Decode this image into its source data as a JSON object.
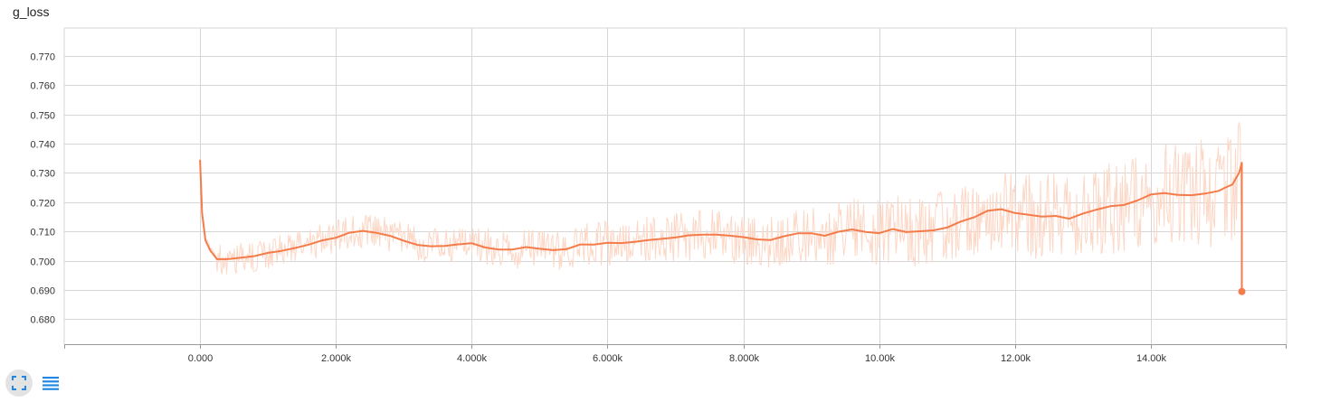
{
  "card": {
    "title": "g_loss"
  },
  "toolbar": {
    "buttons": [
      {
        "name": "expand",
        "icon": "fullscreen-icon"
      },
      {
        "name": "data",
        "icon": "list-icon"
      }
    ]
  },
  "colors": {
    "smoothed": "#f47c4a",
    "raw": "#fcd7c6",
    "grid": "#d6d6d6",
    "axis": "#999999",
    "icon": "#1f88e5"
  },
  "chart_data": {
    "type": "line",
    "title": "g_loss",
    "xlabel": "",
    "ylabel": "",
    "xlim": [
      -2000,
      16000
    ],
    "ylim": [
      0.6715,
      0.7795
    ],
    "xticks": [
      0,
      2000,
      4000,
      6000,
      8000,
      10000,
      12000,
      14000
    ],
    "xtick_labels": [
      "0.000",
      "2.000k",
      "4.000k",
      "6.000k",
      "8.000k",
      "10.00k",
      "12.00k",
      "14.00k"
    ],
    "yticks": [
      0.68,
      0.69,
      0.7,
      0.71,
      0.72,
      0.73,
      0.74,
      0.75,
      0.76,
      0.77
    ],
    "ytick_labels": [
      "0.680",
      "0.690",
      "0.700",
      "0.710",
      "0.720",
      "0.730",
      "0.740",
      "0.750",
      "0.760",
      "0.770"
    ],
    "grid": true,
    "legend": "none",
    "series": [
      {
        "kind": "smoothed",
        "x": [
          0,
          30,
          80,
          150,
          250,
          400,
          600,
          800,
          1000,
          1200,
          1400,
          1600,
          1800,
          2000,
          2200,
          2400,
          2600,
          2800,
          3000,
          3200,
          3400,
          3600,
          3800,
          4000,
          4200,
          4400,
          4600,
          4800,
          5000,
          5200,
          5400,
          5600,
          5800,
          6000,
          6200,
          6400,
          6600,
          6800,
          7000,
          7200,
          7400,
          7600,
          7800,
          8000,
          8200,
          8400,
          8600,
          8800,
          9000,
          9200,
          9400,
          9600,
          9800,
          10000,
          10200,
          10400,
          10600,
          10800,
          11000,
          11200,
          11400,
          11600,
          11800,
          12000,
          12200,
          12400,
          12600,
          12800,
          13000,
          13200,
          13400,
          13600,
          13800,
          14000,
          14200,
          14400,
          14600,
          14800,
          15000,
          15100,
          15200,
          15300,
          15340
        ],
        "y": [
          0.7345,
          0.716,
          0.707,
          0.7035,
          0.7005,
          0.7005,
          0.701,
          0.7015,
          0.7025,
          0.7035,
          0.7045,
          0.7055,
          0.707,
          0.708,
          0.7095,
          0.71,
          0.7095,
          0.7085,
          0.707,
          0.7055,
          0.705,
          0.705,
          0.7055,
          0.706,
          0.7045,
          0.704,
          0.704,
          0.7045,
          0.704,
          0.7035,
          0.704,
          0.7055,
          0.7055,
          0.706,
          0.706,
          0.7065,
          0.707,
          0.7075,
          0.708,
          0.7085,
          0.709,
          0.709,
          0.7085,
          0.708,
          0.7075,
          0.707,
          0.7085,
          0.7095,
          0.7095,
          0.7085,
          0.71,
          0.7105,
          0.71,
          0.7095,
          0.711,
          0.71,
          0.71,
          0.7105,
          0.7115,
          0.7135,
          0.715,
          0.717,
          0.7175,
          0.7165,
          0.7155,
          0.715,
          0.7155,
          0.7145,
          0.716,
          0.7175,
          0.7185,
          0.719,
          0.7205,
          0.7225,
          0.723,
          0.7225,
          0.7225,
          0.723,
          0.724,
          0.725,
          0.726,
          0.73,
          0.7335
        ]
      },
      {
        "kind": "last-point",
        "x": [
          15340
        ],
        "y": [
          0.6895
        ]
      }
    ]
  }
}
